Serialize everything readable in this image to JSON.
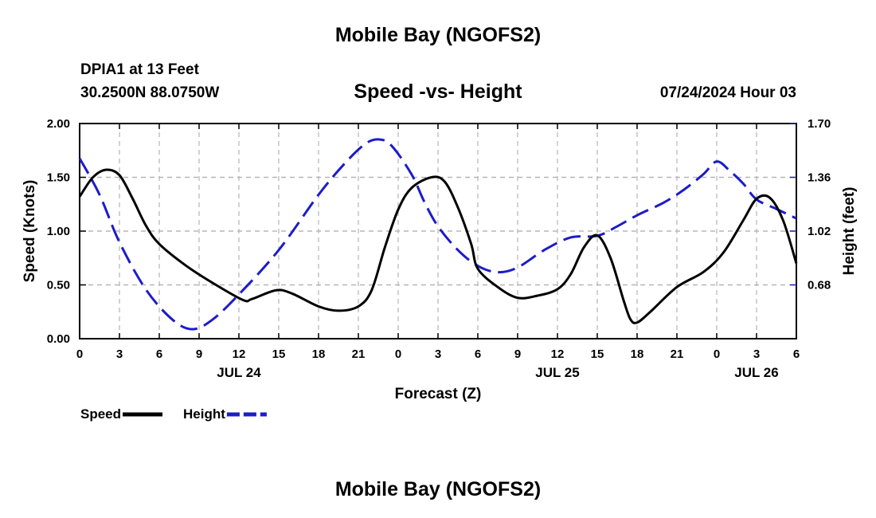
{
  "header": {
    "title": "Mobile Bay (NGOFS2)",
    "station": "DPIA1 at 13 Feet",
    "coords": "30.2500N  88.0750W",
    "run_time": "07/24/2024 Hour 03"
  },
  "footer": {
    "title": "Mobile Bay (NGOFS2)"
  },
  "chart_data": {
    "type": "line",
    "title": "Speed -vs- Height",
    "xlabel": "Forecast (Z)",
    "ylabel_left": "Speed (Knots)",
    "ylabel_right": "Height (feet)",
    "x_unit": "hours from 2024-07-24 00Z",
    "xlim": [
      0,
      54
    ],
    "ylim_left": [
      0,
      2.0
    ],
    "ylim_right": [
      0.34,
      1.7
    ],
    "x_ticks": [
      {
        "x": 0,
        "label": "0"
      },
      {
        "x": 3,
        "label": "3"
      },
      {
        "x": 6,
        "label": "6"
      },
      {
        "x": 9,
        "label": "9"
      },
      {
        "x": 12,
        "label": "12"
      },
      {
        "x": 15,
        "label": "15"
      },
      {
        "x": 18,
        "label": "18"
      },
      {
        "x": 21,
        "label": "21"
      },
      {
        "x": 24,
        "label": "0"
      },
      {
        "x": 27,
        "label": "3"
      },
      {
        "x": 30,
        "label": "6"
      },
      {
        "x": 33,
        "label": "9"
      },
      {
        "x": 36,
        "label": "12"
      },
      {
        "x": 39,
        "label": "15"
      },
      {
        "x": 42,
        "label": "18"
      },
      {
        "x": 45,
        "label": "21"
      },
      {
        "x": 48,
        "label": "0"
      },
      {
        "x": 51,
        "label": "3"
      },
      {
        "x": 54,
        "label": "6"
      }
    ],
    "date_labels": [
      {
        "x": 12,
        "label": "JUL 24"
      },
      {
        "x": 36,
        "label": "JUL 25"
      },
      {
        "x": 51,
        "label": "JUL 26"
      }
    ],
    "y_ticks_left": [
      {
        "v": 0.0,
        "label": "0.00"
      },
      {
        "v": 0.5,
        "label": "0.50"
      },
      {
        "v": 1.0,
        "label": "1.00"
      },
      {
        "v": 1.5,
        "label": "1.50"
      },
      {
        "v": 2.0,
        "label": "2.00"
      }
    ],
    "y_ticks_right": [
      {
        "v": 0.68,
        "label": "0.68"
      },
      {
        "v": 1.02,
        "label": "1.02"
      },
      {
        "v": 1.36,
        "label": "1.36"
      },
      {
        "v": 1.7,
        "label": "1.70"
      }
    ],
    "grid": true,
    "legend_position": "bottom-left",
    "series": [
      {
        "name": "Speed",
        "axis": "left",
        "color": "#000000",
        "style": "solid",
        "points": [
          [
            0,
            1.32
          ],
          [
            1,
            1.5
          ],
          [
            2,
            1.57
          ],
          [
            3,
            1.52
          ],
          [
            4,
            1.3
          ],
          [
            5,
            1.05
          ],
          [
            6,
            0.88
          ],
          [
            8,
            0.68
          ],
          [
            10,
            0.52
          ],
          [
            12.3,
            0.36
          ],
          [
            13,
            0.37
          ],
          [
            14.8,
            0.45
          ],
          [
            16,
            0.42
          ],
          [
            18,
            0.3
          ],
          [
            19.5,
            0.26
          ],
          [
            21,
            0.3
          ],
          [
            22,
            0.45
          ],
          [
            23,
            0.85
          ],
          [
            24,
            1.2
          ],
          [
            25,
            1.4
          ],
          [
            26.5,
            1.5
          ],
          [
            27.5,
            1.46
          ],
          [
            28.5,
            1.22
          ],
          [
            29.5,
            0.88
          ],
          [
            30,
            0.65
          ],
          [
            31.5,
            0.48
          ],
          [
            33,
            0.38
          ],
          [
            34.5,
            0.4
          ],
          [
            36,
            0.46
          ],
          [
            37,
            0.6
          ],
          [
            38,
            0.85
          ],
          [
            39,
            0.96
          ],
          [
            40,
            0.75
          ],
          [
            41,
            0.35
          ],
          [
            41.5,
            0.18
          ],
          [
            42,
            0.15
          ],
          [
            43,
            0.25
          ],
          [
            45,
            0.48
          ],
          [
            47,
            0.62
          ],
          [
            48.5,
            0.8
          ],
          [
            50,
            1.1
          ],
          [
            51,
            1.3
          ],
          [
            52,
            1.31
          ],
          [
            53,
            1.1
          ],
          [
            54,
            0.7
          ]
        ]
      },
      {
        "name": "Height",
        "axis": "right",
        "color": "#1c1cc9",
        "style": "dashed",
        "points": [
          [
            0,
            1.48
          ],
          [
            1.5,
            1.25
          ],
          [
            3,
            0.95
          ],
          [
            5,
            0.65
          ],
          [
            7,
            0.46
          ],
          [
            8.5,
            0.4
          ],
          [
            10,
            0.46
          ],
          [
            12,
            0.62
          ],
          [
            15,
            0.9
          ],
          [
            18,
            1.25
          ],
          [
            20,
            1.45
          ],
          [
            21.5,
            1.57
          ],
          [
            22.5,
            1.6
          ],
          [
            23.5,
            1.56
          ],
          [
            25,
            1.38
          ],
          [
            26,
            1.2
          ],
          [
            27,
            1.05
          ],
          [
            28.5,
            0.9
          ],
          [
            30,
            0.8
          ],
          [
            31.5,
            0.76
          ],
          [
            33,
            0.79
          ],
          [
            35,
            0.9
          ],
          [
            37,
            0.98
          ],
          [
            39,
            0.99
          ],
          [
            40.5,
            1.05
          ],
          [
            42,
            1.12
          ],
          [
            44,
            1.2
          ],
          [
            45.5,
            1.28
          ],
          [
            47,
            1.38
          ],
          [
            48,
            1.46
          ],
          [
            49,
            1.4
          ],
          [
            50,
            1.32
          ],
          [
            51,
            1.22
          ],
          [
            52.5,
            1.16
          ],
          [
            54,
            1.1
          ]
        ]
      }
    ]
  }
}
